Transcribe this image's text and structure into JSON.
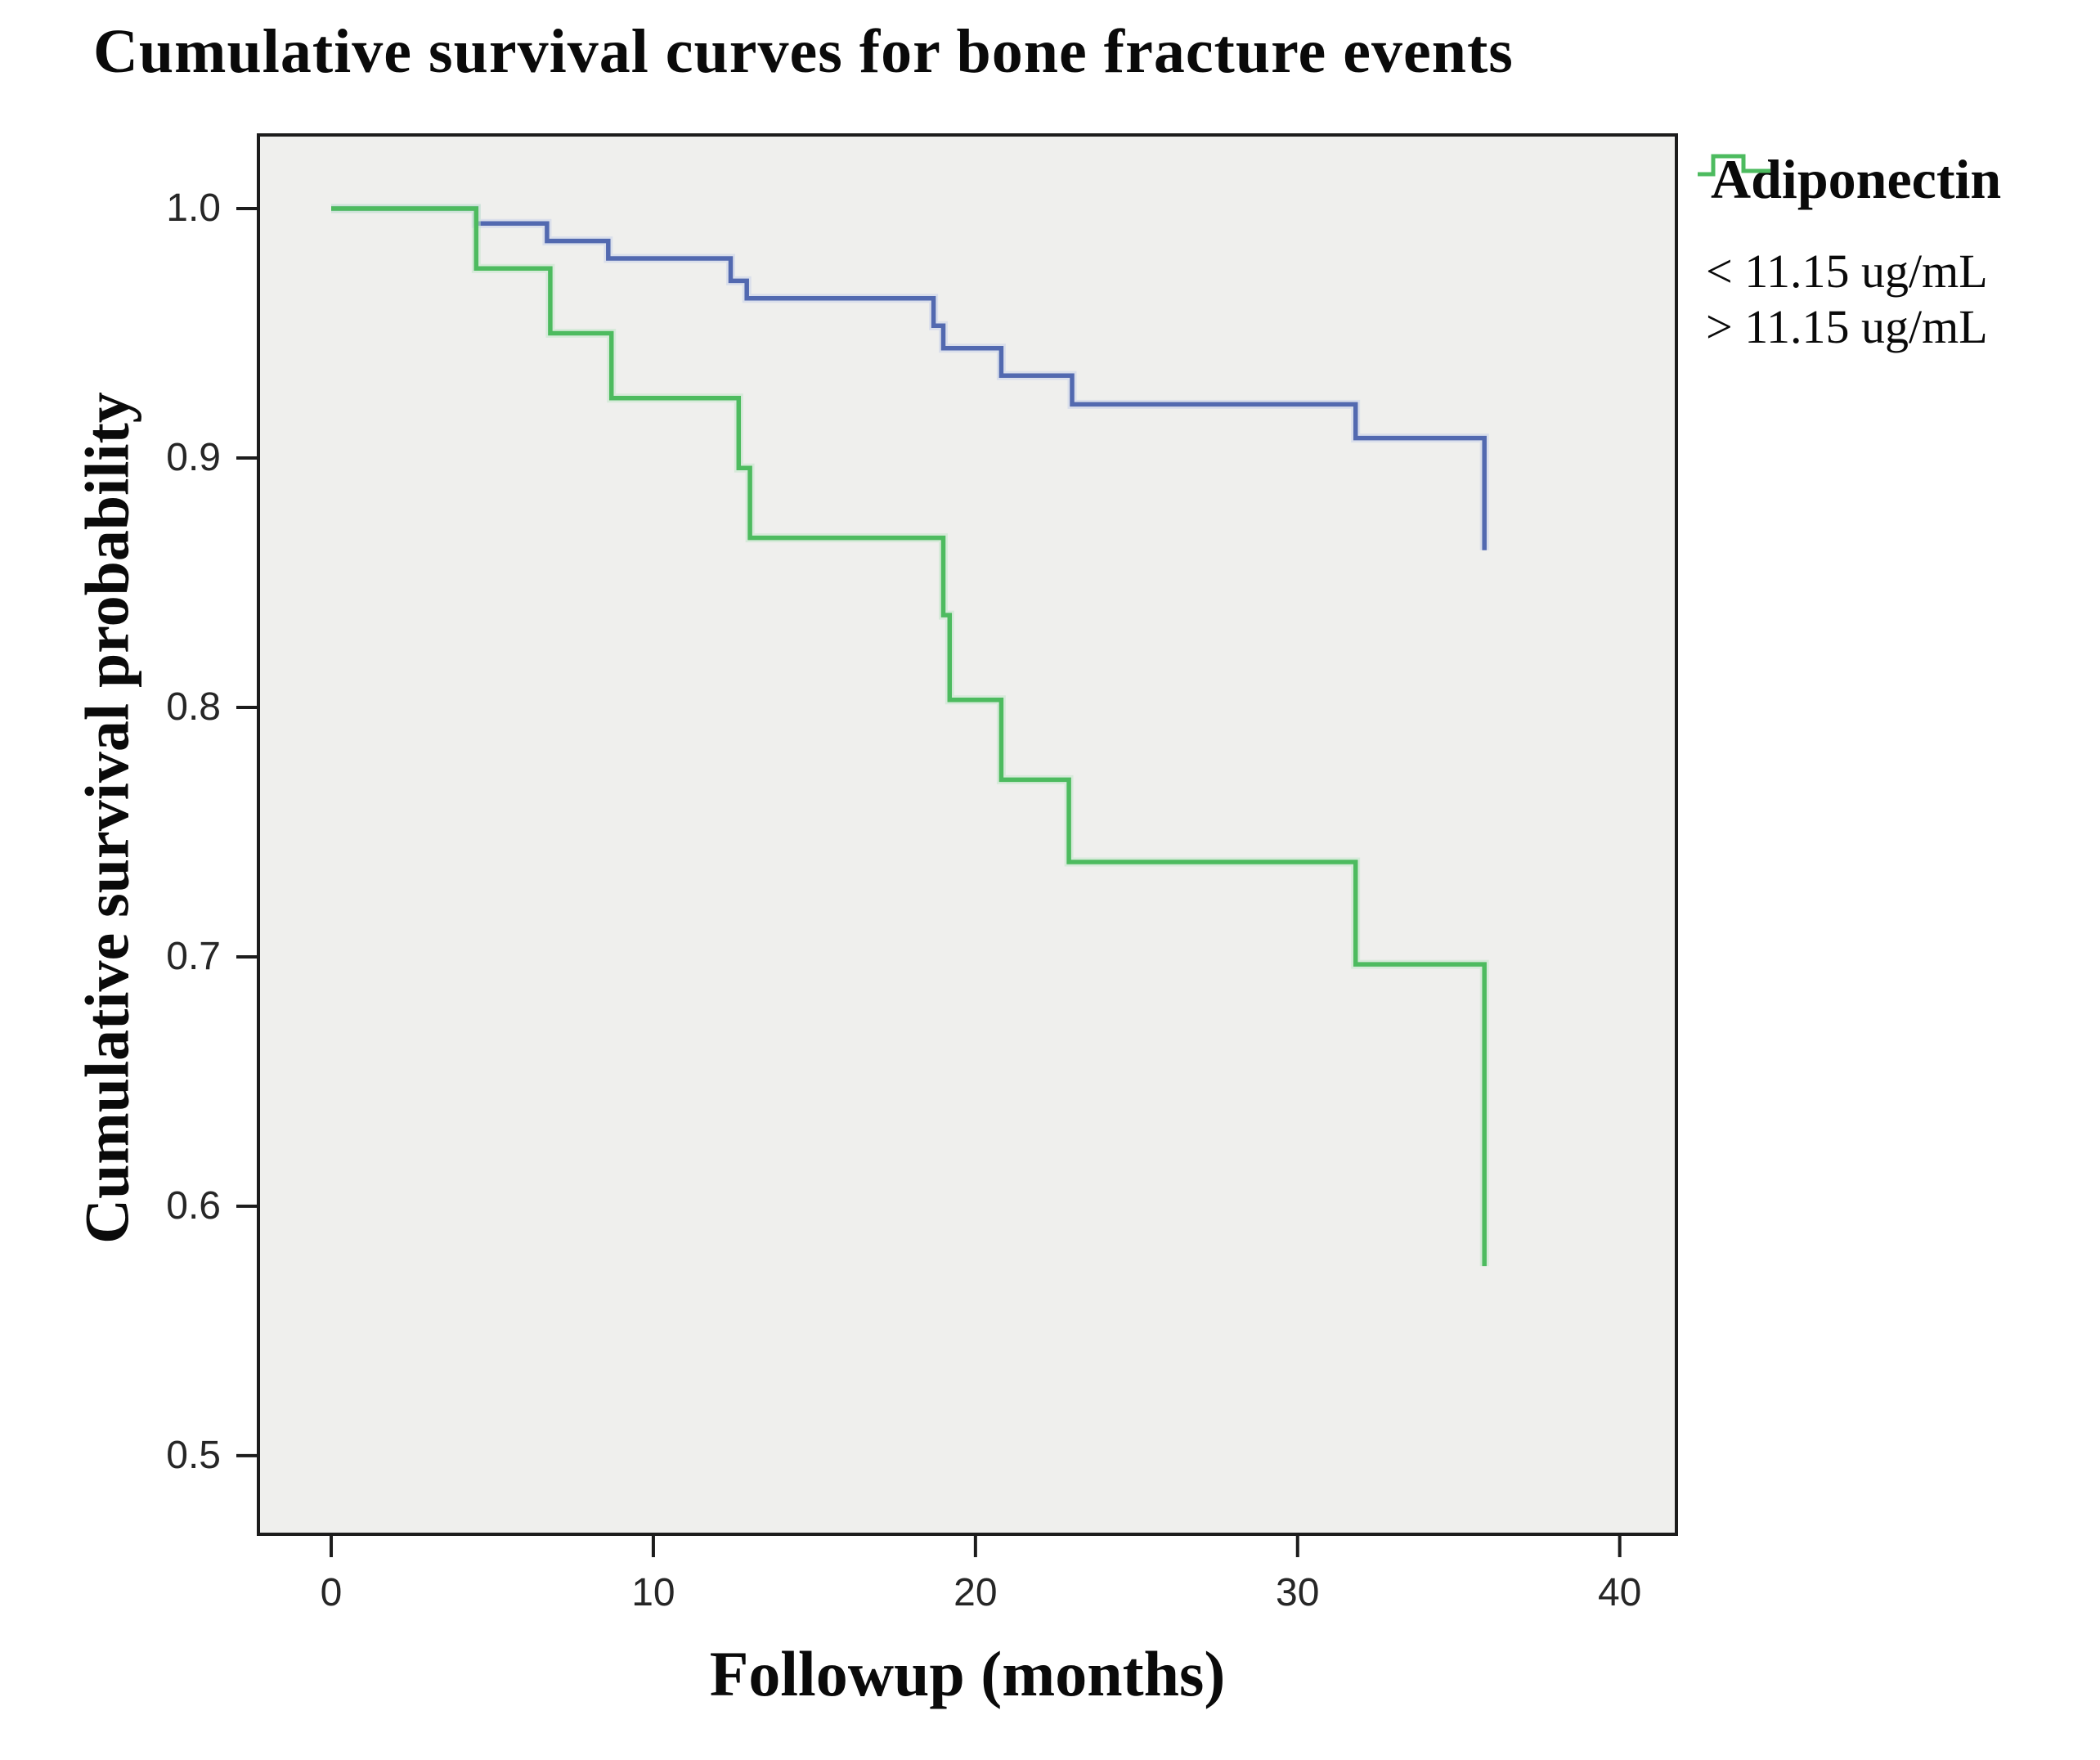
{
  "header": {
    "title": "Cumulative survival curves for bone fracture events"
  },
  "axes": {
    "xlabel": "Followup (months)",
    "ylabel": "Cumulative survival probability"
  },
  "legend": {
    "title": "Adiponectin",
    "items": [
      {
        "label": "< 11.15 ug/mL",
        "color": "#5269B0",
        "halo": "#C9D1E9"
      },
      {
        "label": "> 11.15 ug/mL",
        "color": "#4DBB5F",
        "halo": "#C2E6CB"
      }
    ]
  },
  "colors": {
    "plot_background": "#EFEFED",
    "plot_border": "#1C1C1C",
    "tick": "#1C1C1C",
    "text": "#0A0A0A"
  },
  "chart_data": {
    "type": "line",
    "subtype": "kaplan-meier-step",
    "title": "Cumulative survival curves for bone fracture events",
    "xlabel": "Followup (months)",
    "ylabel": "Cumulative survival probability",
    "xlim": [
      -2.26,
      41.76
    ],
    "ylim": [
      0.4685,
      1.0295
    ],
    "xticks": [
      0,
      10,
      20,
      30,
      40
    ],
    "xtick_labels": [
      "0",
      "10",
      "20",
      "30",
      "40"
    ],
    "yticks": [
      1.0,
      0.9,
      0.8,
      0.7,
      0.6,
      0.5
    ],
    "ytick_labels": [
      "1.0",
      "0.9",
      "0.8",
      "0.7",
      "0.6",
      "0.5"
    ],
    "grid": false,
    "legend_position": "right",
    "legend_title": "Adiponectin",
    "series": [
      {
        "name": "< 11.15 ug/mL",
        "color": "#5269B0",
        "halo": "#C9D1E9",
        "points": [
          [
            0,
            1.0
          ],
          [
            4.5,
            0.994
          ],
          [
            6.7,
            0.987
          ],
          [
            8.6,
            0.98
          ],
          [
            12.4,
            0.971
          ],
          [
            12.9,
            0.964
          ],
          [
            18.7,
            0.953
          ],
          [
            19.0,
            0.944
          ],
          [
            20.8,
            0.933
          ],
          [
            23.0,
            0.9215
          ],
          [
            31.8,
            0.908
          ],
          [
            35.8,
            0.863
          ]
        ]
      },
      {
        "name": "> 11.15 ug/mL",
        "color": "#4DBB5F",
        "halo": "#C2E6CB",
        "points": [
          [
            0,
            1.0
          ],
          [
            4.5,
            0.976
          ],
          [
            6.8,
            0.95
          ],
          [
            8.7,
            0.924
          ],
          [
            12.65,
            0.896
          ],
          [
            13.0,
            0.868
          ],
          [
            19.0,
            0.837
          ],
          [
            19.2,
            0.803
          ],
          [
            20.8,
            0.771
          ],
          [
            22.9,
            0.738
          ],
          [
            31.8,
            0.697
          ],
          [
            35.8,
            0.576
          ]
        ]
      }
    ]
  }
}
